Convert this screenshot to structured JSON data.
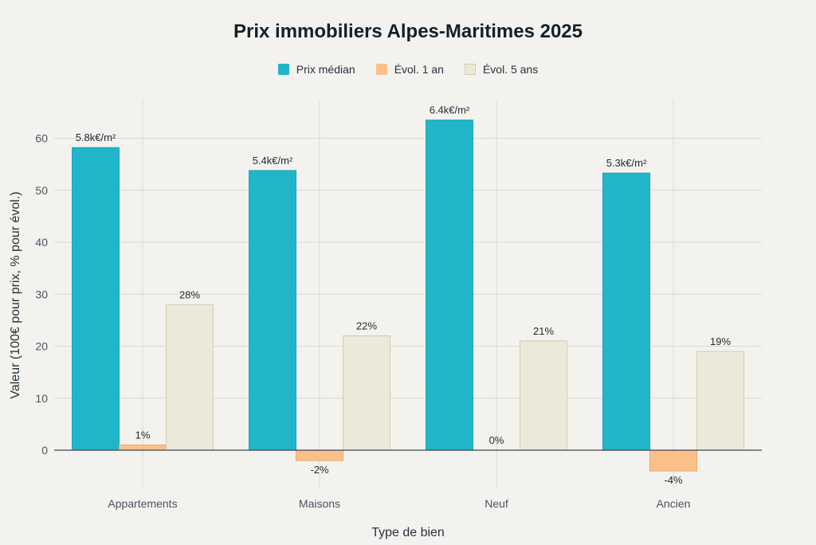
{
  "chart_data": {
    "type": "bar",
    "title": "Prix immobiliers Alpes-Maritimes 2025",
    "xlabel": "Type de bien",
    "ylabel": "Valeur (100€ pour prix, % pour évol.)",
    "categories": [
      "Appartements",
      "Maisons",
      "Neuf",
      "Ancien"
    ],
    "ylim": [
      -6,
      64
    ],
    "yticks": [
      0,
      10,
      20,
      30,
      40,
      50,
      60
    ],
    "grid": true,
    "legend_position": "top",
    "series": [
      {
        "name": "Prix médian",
        "color": "#21b5c9",
        "values": [
          58.2,
          53.8,
          63.5,
          53.3
        ],
        "labels": [
          "5.8k€/m²",
          "5.4k€/m²",
          "6.4k€/m²",
          "5.3k€/m²"
        ]
      },
      {
        "name": "Évol. 1 an",
        "color": "#fbc08a",
        "values": [
          1,
          -2,
          0,
          -4
        ],
        "labels": [
          "1%",
          "-2%",
          "0%",
          "-4%"
        ]
      },
      {
        "name": "Évol. 5 ans",
        "color": "#ebead8",
        "values": [
          28,
          22,
          21,
          19
        ],
        "labels": [
          "28%",
          "22%",
          "21%",
          "19%"
        ]
      }
    ]
  }
}
